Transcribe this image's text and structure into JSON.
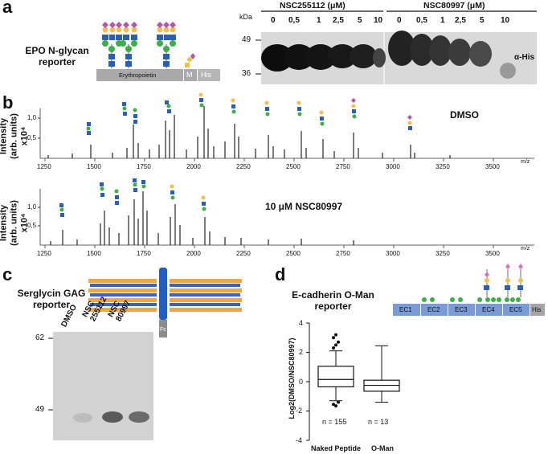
{
  "panel_a": {
    "letter": "a",
    "reporter_label_line1": "EPO N-glycan",
    "reporter_label_line2": "reporter",
    "protein_label": "Erythropoietin",
    "tag_m": "M",
    "tag_his": "His",
    "kda_label": "kDa",
    "mw_marks": [
      "49",
      "36"
    ],
    "group1_label": "NSC255112 (μM)",
    "group2_label": "NSC80997 (μM)",
    "conc_group1": [
      "0",
      "0,5",
      "1",
      "2,5",
      "5",
      "10"
    ],
    "conc_group2": [
      "0",
      "0,5",
      "1",
      "2,5",
      "5",
      "10"
    ],
    "antibody_label": "α-His"
  },
  "panel_b": {
    "letter": "b",
    "ylabel_line1": "Intensity",
    "ylabel_line2": "(arb. units) x10⁴",
    "top_condition": "DMSO",
    "bottom_condition": "10 μM NSC80997",
    "top_yticks": [
      "1,0",
      "0,5"
    ],
    "bottom_yticks": [
      "1,0",
      "0,5"
    ],
    "xticks": [
      "1250",
      "1500",
      "1750",
      "2000",
      "2250",
      "2500",
      "2750",
      "3000",
      "3250",
      "3500"
    ],
    "xunit": "m/z"
  },
  "panel_c": {
    "letter": "c",
    "reporter_label_line1": "Serglycin GAG",
    "reporter_label_line2": "reporter",
    "fc_label": "Fc",
    "lanes": [
      "DMSO",
      "NSC 255112",
      "NSC 80997"
    ],
    "mw_marks": [
      "62",
      "49"
    ]
  },
  "panel_d": {
    "letter": "d",
    "reporter_label_line1": "E-cadherin  O-Man",
    "reporter_label_line2": "reporter",
    "domains": [
      "EC1",
      "EC2",
      "EC3",
      "EC4",
      "EC5",
      "His"
    ],
    "ylabel": "Log2(DMSO/NSC80997)",
    "yticks": [
      "4",
      "2",
      "0",
      "-2",
      "-4"
    ],
    "groups": [
      "Naked Peptide",
      "O-Man"
    ],
    "n_labels": [
      "n = 155",
      "n = 13"
    ]
  },
  "chart_data": {
    "type": "box",
    "categories": [
      "Naked Peptide",
      "O-Man"
    ],
    "ylim": [
      -4,
      4
    ],
    "ylabel": "Log2(DMSO/NSC80997)",
    "boxes": [
      {
        "name": "Naked Peptide",
        "min": -1.3,
        "q1": -0.35,
        "median": 0.15,
        "q3": 1.05,
        "max": 2.1,
        "n": 155
      },
      {
        "name": "O-Man",
        "min": -1.4,
        "q1": -0.65,
        "median": -0.25,
        "q3": 0.1,
        "max": 2.45,
        "n": 13
      }
    ],
    "colors": {
      "glcnac": "#2b5fb4",
      "man": "#3fae49",
      "gal": "#f3c04f",
      "sia": "#b157a6",
      "fuc": "#e03b2f"
    }
  }
}
